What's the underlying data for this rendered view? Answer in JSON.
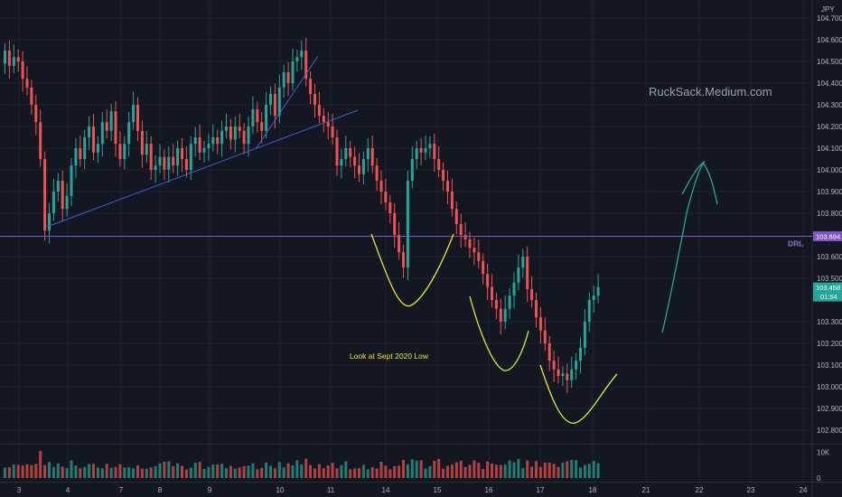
{
  "chart_data": {
    "type": "candlestick",
    "symbol_unit": "JPY",
    "watermark": "RuckSack.Medium.com",
    "annotation": "Look at Sept 2020 Low",
    "drl_label": "DRL",
    "drl_level": 103.694,
    "last_price": 103.458,
    "countdown": "01:54",
    "price_axis": {
      "min": 102.75,
      "max": 104.75,
      "ticks": [
        104.7,
        104.6,
        104.5,
        104.4,
        104.3,
        104.2,
        104.1,
        104.0,
        103.9,
        103.8,
        103.6,
        103.5,
        103.3,
        103.2,
        103.1,
        103.0,
        102.9,
        102.8
      ],
      "tick_labels": [
        "104.700",
        "104.600",
        "104.500",
        "104.400",
        "104.300",
        "104.200",
        "104.100",
        "104.000",
        "103.900",
        "103.800",
        "103.600",
        "103.500",
        "103.300",
        "103.200",
        "103.100",
        "103.000",
        "102.900",
        "102.800"
      ]
    },
    "volume_axis": {
      "ticks": [
        10000,
        0
      ],
      "tick_labels": [
        "10K",
        "0"
      ],
      "max": 14000
    },
    "time_axis": {
      "labels": [
        "3",
        "4",
        "7",
        "8",
        "9",
        "10",
        "11",
        "14",
        "15",
        "16",
        "17",
        "18",
        "21",
        "22",
        "23",
        "24"
      ]
    },
    "closes": [
      104.55,
      104.48,
      104.52,
      104.5,
      104.42,
      104.38,
      104.3,
      104.22,
      104.05,
      103.72,
      103.8,
      103.9,
      103.95,
      103.82,
      103.88,
      104.02,
      104.1,
      104.05,
      104.15,
      104.2,
      104.08,
      104.12,
      104.22,
      104.18,
      104.27,
      104.12,
      104.05,
      104.12,
      104.22,
      104.3,
      104.18,
      104.07,
      104.12,
      104.0,
      104.02,
      104.06,
      104.0,
      104.06,
      104.02,
      104.1,
      104.05,
      104.0,
      104.12,
      104.15,
      104.08,
      104.1,
      104.12,
      104.15,
      104.12,
      104.18,
      104.2,
      104.14,
      104.2,
      104.18,
      104.12,
      104.2,
      104.28,
      104.22,
      104.18,
      104.3,
      104.35,
      104.25,
      104.38,
      104.45,
      104.4,
      104.5,
      104.52,
      104.55,
      104.42,
      104.35,
      104.3,
      104.25,
      104.22,
      104.2,
      104.15,
      104.02,
      104.05,
      104.1,
      104.06,
      104.02,
      103.98,
      104.05,
      104.1,
      104.02,
      103.95,
      103.9,
      103.85,
      103.8,
      103.7,
      103.62,
      103.55,
      103.95,
      104.05,
      104.1,
      104.08,
      104.1,
      104.12,
      104.05,
      104.0,
      103.95,
      103.9,
      103.82,
      103.75,
      103.7,
      103.68,
      103.64,
      103.62,
      103.58,
      103.52,
      103.46,
      103.4,
      103.36,
      103.3,
      103.36,
      103.42,
      103.48,
      103.55,
      103.6,
      103.45,
      103.4,
      103.32,
      103.26,
      103.2,
      103.12,
      103.08,
      103.05,
      103.06,
      103.03,
      103.08,
      103.12,
      103.18,
      103.3,
      103.4,
      103.42,
      103.46
    ],
    "volumes": [
      4000,
      4200,
      5200,
      5100,
      4800,
      5300,
      5000,
      5500,
      10500,
      5000,
      6200,
      4300,
      5600,
      4400,
      3900,
      6800,
      4800,
      3800,
      4300,
      5400,
      5500,
      4100,
      3800,
      5500,
      4000,
      4300,
      5400,
      4100,
      4200,
      3700,
      4900,
      3600,
      3600,
      4100,
      4600,
      5700,
      6300,
      6500,
      4600,
      5700,
      4700,
      3300,
      4000,
      6000,
      6200,
      3500,
      4300,
      5200,
      5300,
      5500,
      3800,
      4700,
      3600,
      4100,
      4600,
      4800,
      5700,
      3400,
      3900,
      6000,
      4700,
      3700,
      6100,
      4100,
      5700,
      4900,
      6800,
      5300,
      7500,
      5000,
      3700,
      5400,
      3800,
      4900,
      5900,
      3800,
      5000,
      6500,
      3400,
      3700,
      3800,
      5100,
      3400,
      4200,
      3700,
      6300,
      4800,
      3400,
      4600,
      4800,
      7000,
      5300,
      7200,
      6700,
      6900,
      3600,
      4600,
      6700,
      7400,
      3600,
      4700,
      5200,
      6100,
      6700,
      4300,
      5100,
      6800,
      5900,
      3500,
      6400,
      5600,
      5200,
      5000,
      5200,
      6800,
      6100,
      7400,
      3800,
      6800,
      4400,
      6600,
      4300,
      5900,
      6000,
      5500,
      4300,
      6000,
      6500,
      7000,
      6900,
      4100,
      5100,
      5500,
      6600,
      5700
    ]
  },
  "colors": {
    "background": "#131722",
    "up": "#26a69a",
    "down": "#ef5350",
    "up_volume": "#1f7f75",
    "down_volume": "#b5413f",
    "trendline": "#3d5fe0",
    "drl_line": "#7e57c2",
    "yellow": "#e8e82a",
    "green_arrow": "#26a69a",
    "axis_text": "#b2b5be",
    "grid": "#1e222d"
  }
}
